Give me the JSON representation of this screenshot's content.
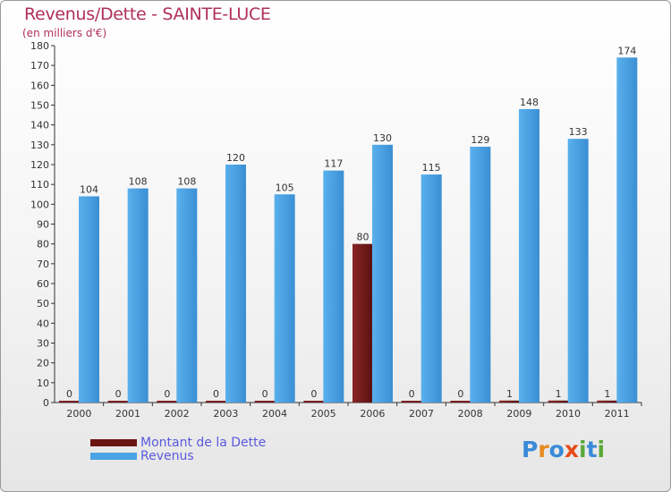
{
  "title": "Revenus/Dette - SAINTE-LUCE",
  "subtitle": "(en milliers d'€)",
  "logo": "Proxiti",
  "legend": {
    "debt": "Montant de la Dette",
    "revenue": "Revenus"
  },
  "colors": {
    "debt": "#7a1e1e",
    "revenue": "#4aa3e4",
    "title": "#b0305a",
    "legend_text": "#5a5adf"
  },
  "chart_data": {
    "type": "bar",
    "title": "Revenus/Dette - SAINTE-LUCE",
    "ylabel": "(en milliers d'€)",
    "xlabel": "",
    "ylim": [
      0,
      180
    ],
    "yticks": [
      0,
      10,
      20,
      30,
      40,
      50,
      60,
      70,
      80,
      90,
      100,
      110,
      120,
      130,
      140,
      150,
      160,
      170,
      180
    ],
    "categories": [
      "2000",
      "2001",
      "2002",
      "2003",
      "2004",
      "2005",
      "2006",
      "2007",
      "2008",
      "2009",
      "2010",
      "2011"
    ],
    "series": [
      {
        "name": "Montant de la Dette",
        "values": [
          0,
          0,
          0,
          0,
          0,
          0,
          80,
          0,
          0,
          1,
          1,
          1
        ]
      },
      {
        "name": "Revenus",
        "values": [
          104,
          108,
          108,
          120,
          105,
          117,
          130,
          115,
          129,
          148,
          133,
          174
        ]
      }
    ],
    "legend_position": "bottom-left",
    "grid": false
  }
}
